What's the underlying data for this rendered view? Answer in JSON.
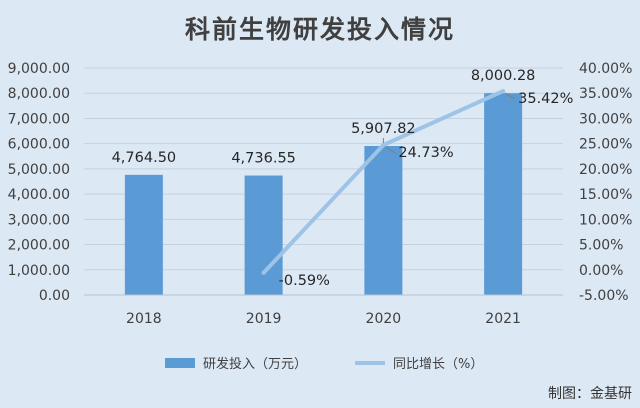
{
  "chart_data": {
    "type": "bar",
    "title": "科前生物研发投入情况",
    "categories": [
      "2018",
      "2019",
      "2020",
      "2021"
    ],
    "series": [
      {
        "name": "研发投入（万元）",
        "type": "bar",
        "axis": "left",
        "values": [
          4764.5,
          4736.55,
          5907.82,
          8000.28
        ],
        "labels": [
          "4,764.50",
          "4,736.55",
          "5,907.82",
          "8,000.28"
        ],
        "color": "#5b9bd5"
      },
      {
        "name": "同比增长（%）",
        "type": "line",
        "axis": "right",
        "values": [
          null,
          -0.59,
          24.73,
          35.42
        ],
        "labels": [
          "",
          "-0.59%",
          "24.73%",
          "35.42%"
        ],
        "color": "#9dc3e6"
      }
    ],
    "y_left": {
      "ylim": [
        0,
        9000
      ],
      "ticks": [
        "0.00",
        "1,000.00",
        "2,000.00",
        "3,000.00",
        "4,000.00",
        "5,000.00",
        "6,000.00",
        "7,000.00",
        "8,000.00",
        "9,000.00"
      ]
    },
    "y_right": {
      "ylim": [
        -5,
        40
      ],
      "ticks": [
        "-5.00%",
        "0.00%",
        "5.00%",
        "10.00%",
        "15.00%",
        "20.00%",
        "25.00%",
        "30.00%",
        "35.00%",
        "40.00%"
      ]
    },
    "grid": true,
    "legend_position": "bottom"
  },
  "watermark": "制图：金基研"
}
